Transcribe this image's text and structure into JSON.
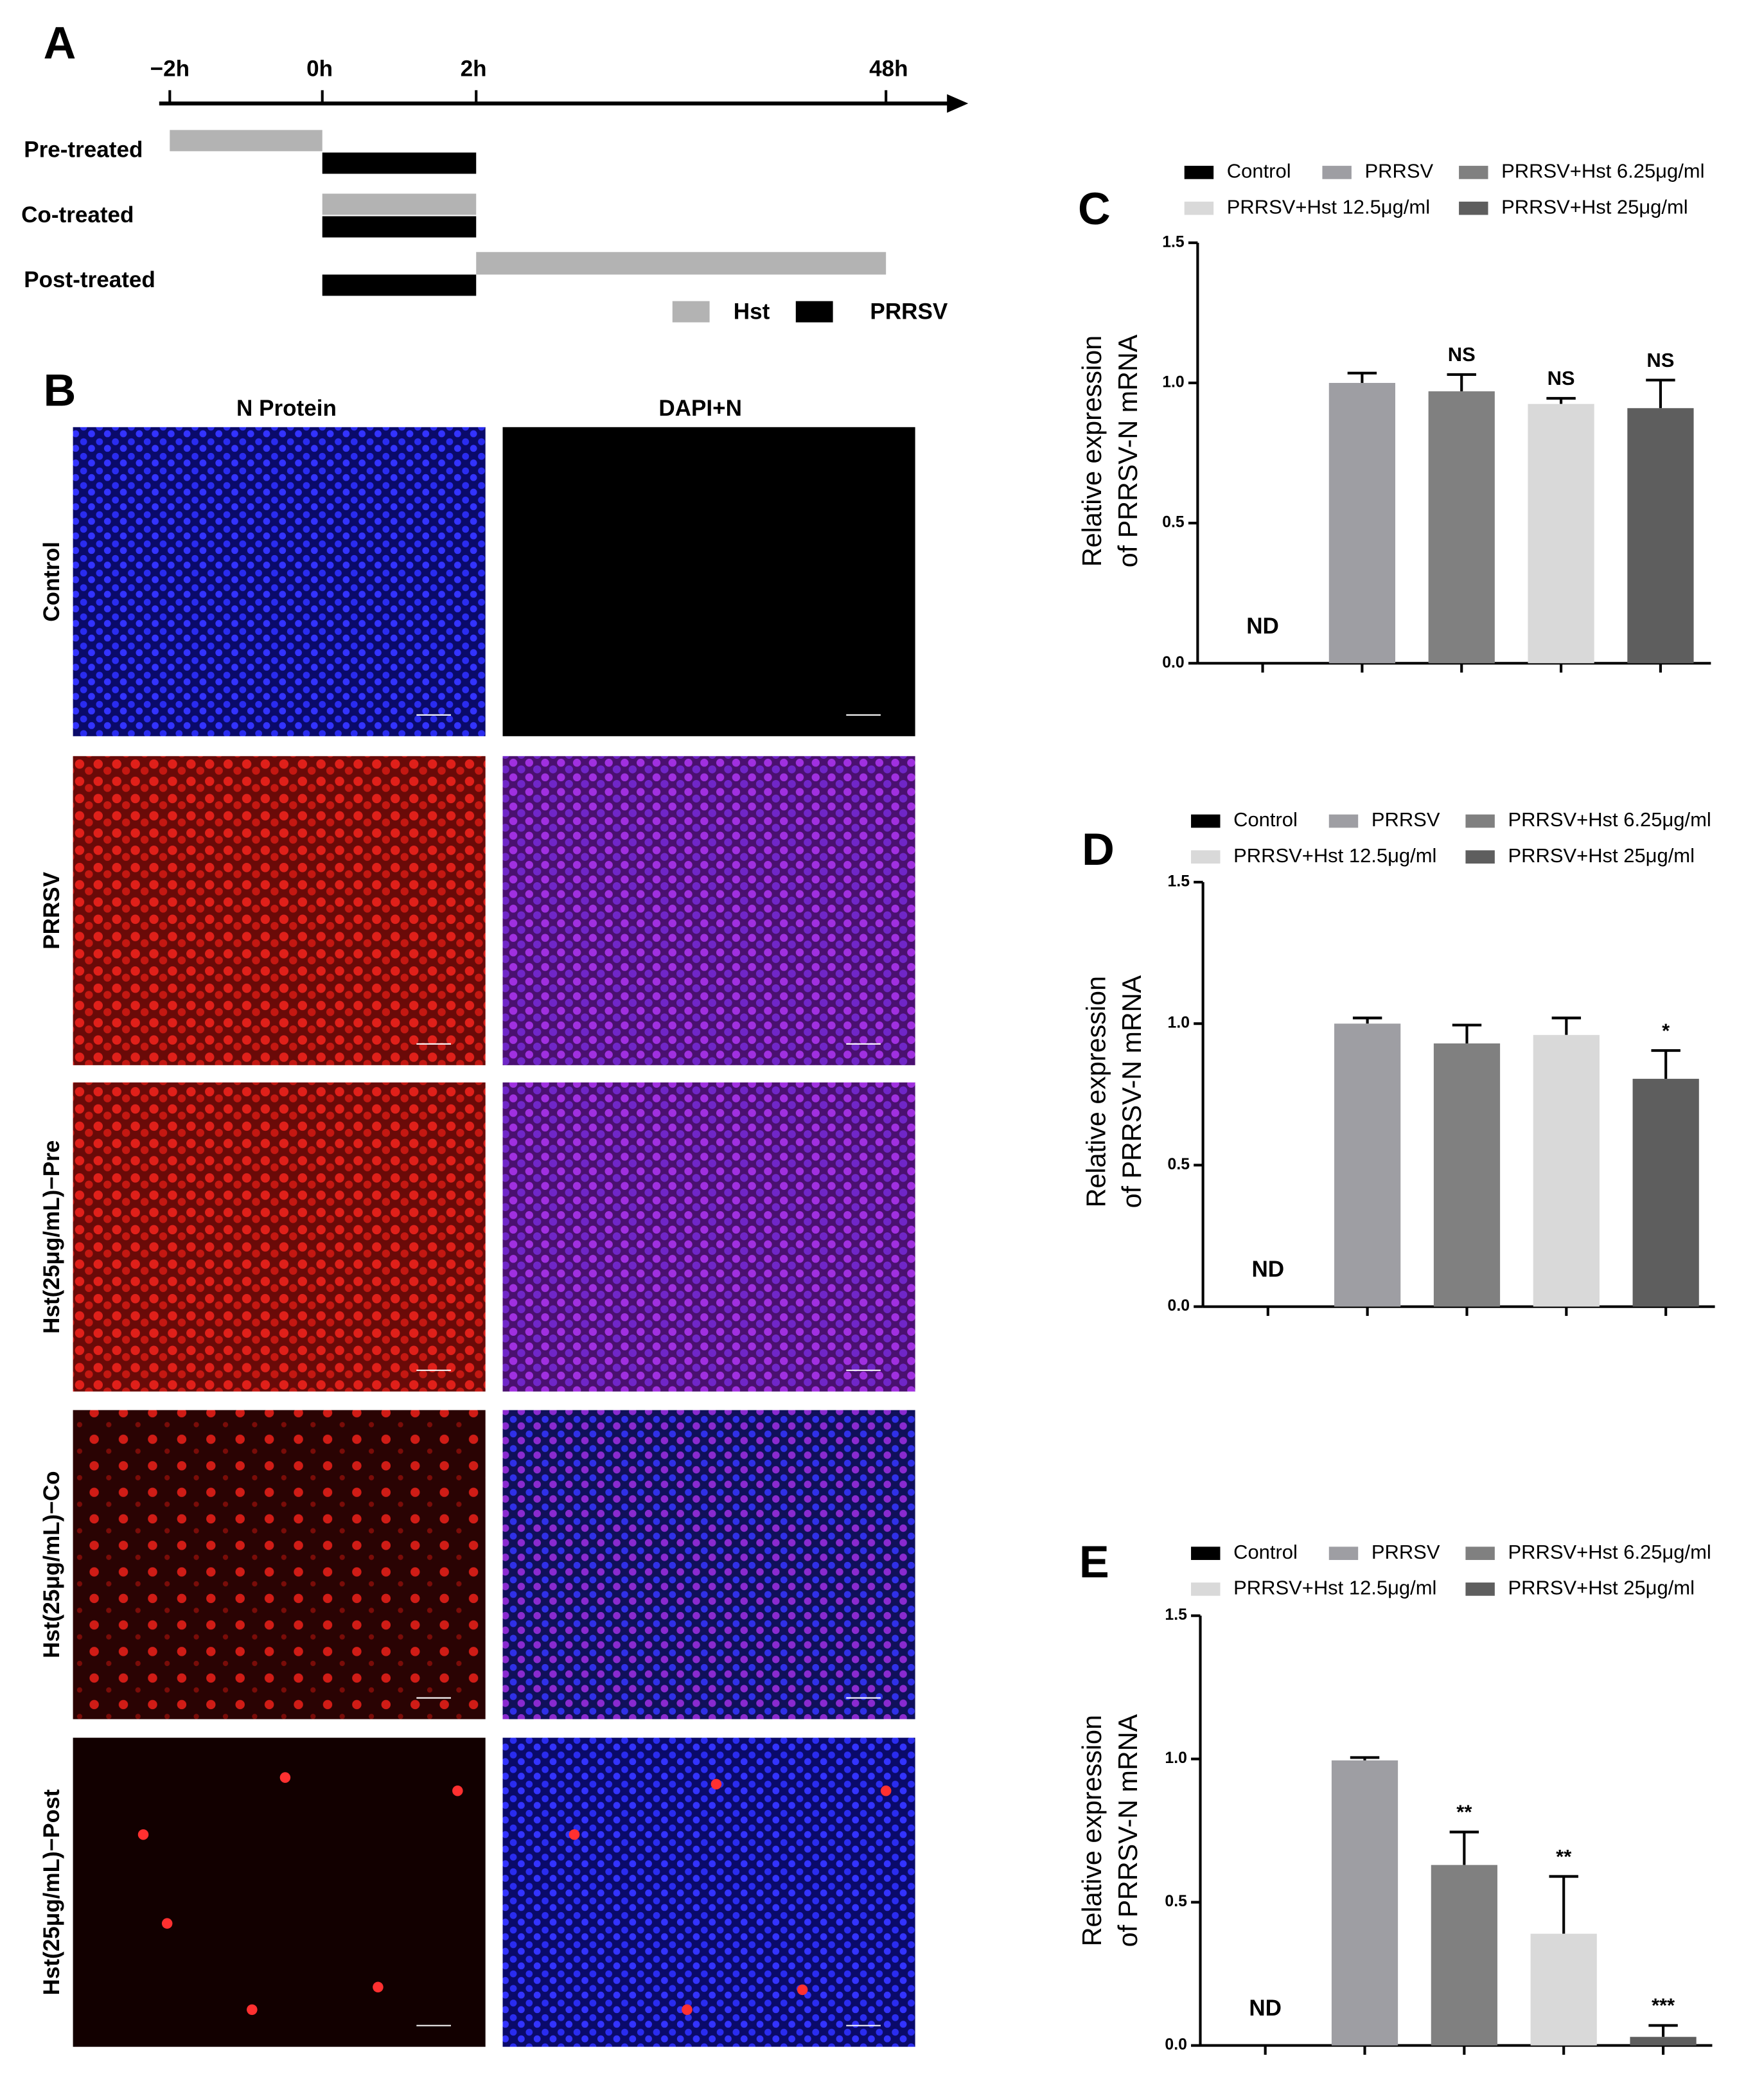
{
  "timeline": {
    "panel": "A",
    "ticks": [
      "−2h",
      "0h",
      "2h",
      "48h"
    ],
    "rows": [
      "Pre-treated",
      "Co-treated",
      "Post-treated"
    ],
    "legend": [
      "Hst",
      "PRRSV"
    ]
  },
  "images": {
    "panel": "B",
    "columns": [
      "N Protein",
      "DAPI+N"
    ],
    "rows": [
      "Control",
      "PRRSV",
      "Hst(25μg/mL)−Pre",
      "Hst(25μg/mL)−Co",
      "Hst(25μg/mL)−Post"
    ]
  },
  "chart_data": [
    {
      "type": "bar",
      "panel": "C",
      "ylabel": [
        "Relative expression",
        "of PRRSV-N mRNA"
      ],
      "legend": [
        "Control",
        "PRRSV",
        "PRRSV+Hst 6.25μg/ml",
        "PRRSV+Hst 12.5μg/ml",
        "PRRSV+Hst 25μg/ml"
      ],
      "colors": [
        "#000000",
        "#9e9ea3",
        "#808080",
        "#d9d9d9",
        "#5e5e5e"
      ],
      "categories": [
        null,
        null,
        null,
        null,
        null
      ],
      "values": [
        null,
        1.0,
        0.97,
        0.925,
        0.91
      ],
      "errors": [
        null,
        0.035,
        0.06,
        0.02,
        0.1
      ],
      "significance": [
        "ND",
        null,
        "NS",
        "NS",
        "NS"
      ],
      "ylim": [
        0,
        1.5
      ],
      "yticks": [
        {
          "value": 0,
          "label": "0.0"
        },
        {
          "value": 0.5,
          "label": "0.5"
        },
        {
          "value": 1,
          "label": "1.0"
        },
        {
          "value": 1.5,
          "label": "1.5"
        }
      ]
    },
    {
      "type": "bar",
      "panel": "D",
      "ylabel": [
        "Relative expression",
        "of PRRSV-N mRNA"
      ],
      "legend": [
        "Control",
        "PRRSV",
        "PRRSV+Hst 6.25μg/ml",
        "PRRSV+Hst 12.5μg/ml",
        "PRRSV+Hst 25μg/ml"
      ],
      "colors": [
        "#000000",
        "#9e9ea3",
        "#808080",
        "#d9d9d9",
        "#5e5e5e"
      ],
      "categories": [
        null,
        null,
        null,
        null,
        null
      ],
      "values": [
        null,
        1.0,
        0.93,
        0.96,
        0.805
      ],
      "errors": [
        null,
        0.02,
        0.065,
        0.06,
        0.1
      ],
      "significance": [
        "ND",
        null,
        null,
        null,
        "*"
      ],
      "ylim": [
        0,
        1.5
      ],
      "yticks": [
        {
          "value": 0,
          "label": "0.0"
        },
        {
          "value": 0.5,
          "label": "0.5"
        },
        {
          "value": 1,
          "label": "1.0"
        },
        {
          "value": 1.5,
          "label": "1.5"
        }
      ]
    },
    {
      "type": "bar",
      "panel": "E",
      "ylabel": [
        "Relative expression",
        "of PRRSV-N mRNA"
      ],
      "legend": [
        "Control",
        "PRRSV",
        "PRRSV+Hst 6.25μg/ml",
        "PRRSV+Hst 12.5μg/ml",
        "PRRSV+Hst 25μg/ml"
      ],
      "colors": [
        "#000000",
        "#9e9ea3",
        "#808080",
        "#d9d9d9",
        "#5e5e5e"
      ],
      "categories": [
        null,
        null,
        null,
        null,
        null
      ],
      "values": [
        null,
        0.995,
        0.63,
        0.39,
        0.03
      ],
      "errors": [
        null,
        0.01,
        0.115,
        0.2,
        0.04
      ],
      "significance": [
        "ND",
        null,
        "**",
        "**",
        "***"
      ],
      "ylim": [
        0,
        1.5
      ],
      "yticks": [
        {
          "value": 0,
          "label": "0.0"
        },
        {
          "value": 0.5,
          "label": "0.5"
        },
        {
          "value": 1,
          "label": "1.0"
        },
        {
          "value": 1.5,
          "label": "1.5"
        }
      ]
    }
  ]
}
